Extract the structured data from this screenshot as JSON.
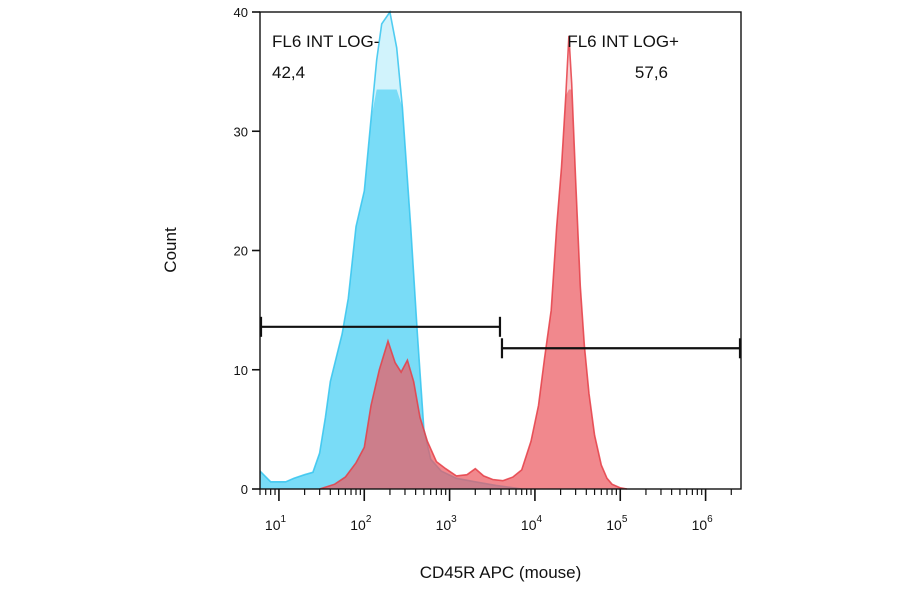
{
  "chart_data": {
    "type": "area",
    "title": "",
    "xlabel": "CD45R APC (mouse)",
    "ylabel": "Count",
    "x_scale": "log",
    "xlim": [
      6,
      2600000
    ],
    "ylim": [
      0,
      40
    ],
    "grid": false,
    "y_ticks": [
      {
        "value": 0,
        "label": "0"
      },
      {
        "value": 10,
        "label": "10"
      },
      {
        "value": 20,
        "label": "20"
      },
      {
        "value": 30,
        "label": "30"
      },
      {
        "value": 40,
        "label": "40"
      }
    ],
    "x_ticks": [
      {
        "value": 10,
        "base": "10",
        "exp": "1"
      },
      {
        "value": 100,
        "base": "10",
        "exp": "2"
      },
      {
        "value": 1000,
        "base": "10",
        "exp": "3"
      },
      {
        "value": 10000,
        "base": "10",
        "exp": "4"
      },
      {
        "value": 100000,
        "base": "10",
        "exp": "5"
      },
      {
        "value": 1000000,
        "base": "10",
        "exp": "6"
      }
    ],
    "series": [
      {
        "color": "#35c4ee",
        "fill": "#58d3f5",
        "fill_opacity": 0.72,
        "clip_at": 33.5,
        "points": [
          [
            6,
            1.5
          ],
          [
            8,
            0.6
          ],
          [
            12,
            0.6
          ],
          [
            15,
            0.9
          ],
          [
            20,
            1.2
          ],
          [
            25,
            1.4
          ],
          [
            30,
            3
          ],
          [
            35,
            6
          ],
          [
            40,
            9
          ],
          [
            45,
            10.5
          ],
          [
            55,
            13
          ],
          [
            65,
            16
          ],
          [
            80,
            22
          ],
          [
            100,
            25
          ],
          [
            120,
            31
          ],
          [
            140,
            36
          ],
          [
            160,
            39
          ],
          [
            200,
            40
          ],
          [
            240,
            37
          ],
          [
            280,
            32
          ],
          [
            350,
            22
          ],
          [
            420,
            13
          ],
          [
            500,
            5
          ],
          [
            600,
            2.5
          ],
          [
            800,
            1.5
          ],
          [
            1200,
            0.9
          ],
          [
            2000,
            0.6
          ],
          [
            3500,
            0.3
          ],
          [
            5000,
            0.15
          ],
          [
            7000,
            0
          ]
        ]
      },
      {
        "color": "#e53e46",
        "fill": "#ec5a62",
        "fill_opacity": 0.62,
        "clip_at": 33.5,
        "points": [
          [
            30,
            0
          ],
          [
            45,
            0.4
          ],
          [
            60,
            1
          ],
          [
            80,
            2.2
          ],
          [
            100,
            3.5
          ],
          [
            120,
            7
          ],
          [
            150,
            10
          ],
          [
            190,
            12.4
          ],
          [
            230,
            10.6
          ],
          [
            270,
            9.8
          ],
          [
            320,
            10.8
          ],
          [
            380,
            9
          ],
          [
            450,
            6
          ],
          [
            550,
            4
          ],
          [
            700,
            2.3
          ],
          [
            900,
            1.7
          ],
          [
            1200,
            1.1
          ],
          [
            1600,
            1.2
          ],
          [
            2000,
            1.7
          ],
          [
            2500,
            1.1
          ],
          [
            3200,
            0.8
          ],
          [
            4200,
            0.7
          ],
          [
            5500,
            1
          ],
          [
            7000,
            1.6
          ],
          [
            9000,
            4
          ],
          [
            11000,
            7
          ],
          [
            13000,
            11
          ],
          [
            15500,
            15
          ],
          [
            18000,
            22
          ],
          [
            20500,
            27
          ],
          [
            23000,
            33
          ],
          [
            25000,
            38
          ],
          [
            27000,
            34
          ],
          [
            30000,
            26
          ],
          [
            34000,
            17
          ],
          [
            38000,
            12
          ],
          [
            43000,
            8
          ],
          [
            50000,
            4.5
          ],
          [
            60000,
            2
          ],
          [
            70000,
            0.9
          ],
          [
            80000,
            0.4
          ],
          [
            100000,
            0.1
          ],
          [
            120000,
            0
          ]
        ]
      }
    ],
    "gates": [
      {
        "name": "FL6 INT LOG-",
        "value": "42,4",
        "x_start": 6,
        "x_end": 4000,
        "y": 13.6
      },
      {
        "name": "FL6 INT LOG+",
        "value": "57,6",
        "x_start": 4000,
        "x_end": 2600000,
        "y": 11.8
      }
    ]
  }
}
